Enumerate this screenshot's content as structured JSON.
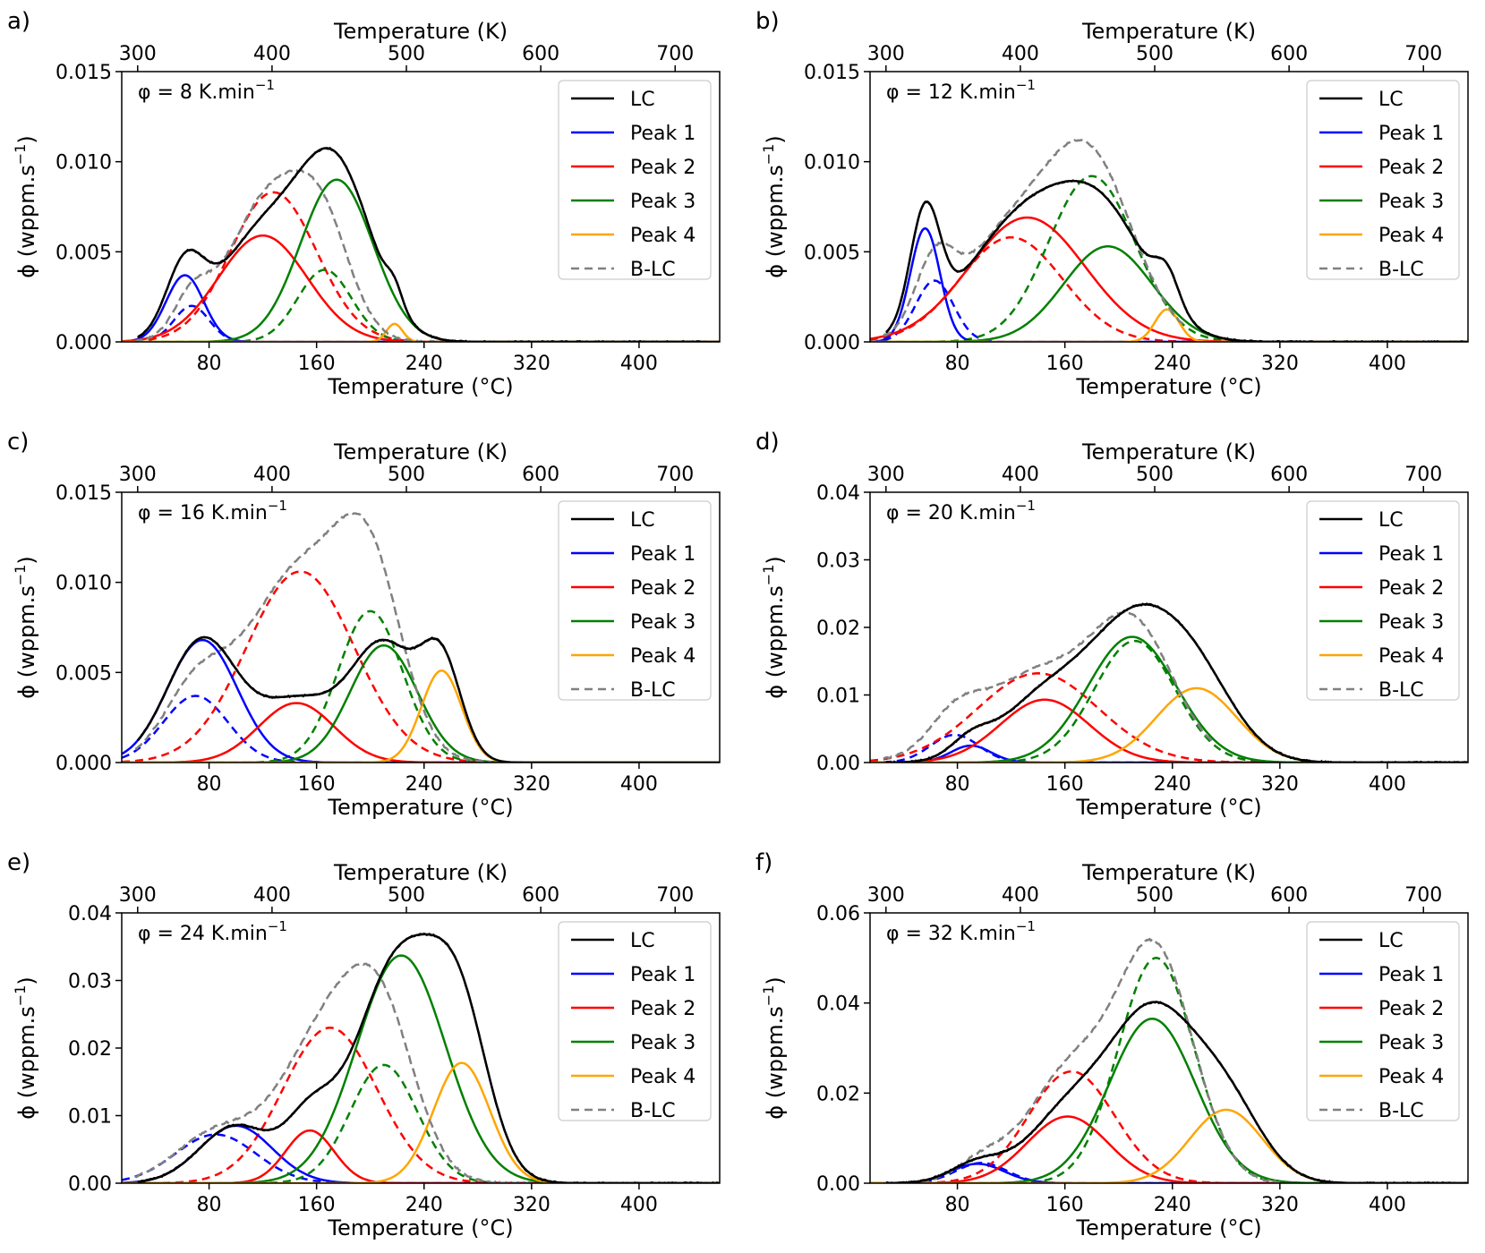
{
  "chart_data": {
    "type": "line",
    "figure_layout": "3x2 grid",
    "legend": {
      "placement": "top-right",
      "entries": [
        {
          "key": "lc",
          "label": "LC",
          "color": "#000000",
          "style": "solid"
        },
        {
          "key": "p1",
          "label": "Peak 1",
          "color": "#0000ff",
          "style": "solid"
        },
        {
          "key": "p2",
          "label": "Peak 2",
          "color": "#ff0000",
          "style": "solid"
        },
        {
          "key": "p3",
          "label": "Peak 3",
          "color": "#008000",
          "style": "solid"
        },
        {
          "key": "p4",
          "label": "Peak 4",
          "color": "#ffa500",
          "style": "solid"
        },
        {
          "key": "blc",
          "label": "B-LC",
          "color": "#808080",
          "style": "dashed"
        }
      ]
    },
    "xlabel": "Temperature (°C)",
    "x2label": "Temperature (K)",
    "ylabel_main": "ϕ (wppm.s",
    "ylabel_sup": "−1",
    "ylabel_close": ")",
    "xlim": [
      15,
      460
    ],
    "x_ticks": [
      80,
      160,
      240,
      320,
      400
    ],
    "x2_ticks": [
      300,
      400,
      500,
      600,
      700
    ],
    "panels": [
      {
        "letter": "a)",
        "rate_main": "φ = 8 K.min",
        "rate_sup": "−1",
        "ylim": [
          0,
          0.015
        ],
        "y_ticks": [
          "0.000",
          "0.005",
          "0.010",
          "0.015"
        ],
        "peaks": {
          "p1": {
            "center": 62,
            "amplitude": 0.0037,
            "width": 14
          },
          "p2": {
            "center": 120,
            "amplitude": 0.0059,
            "width": 33
          },
          "p3": {
            "center": 175,
            "amplitude": 0.009,
            "width": 27
          },
          "p4": {
            "center": 218,
            "amplitude": 0.001,
            "width": 6
          }
        },
        "baked_peaks": {
          "p1": {
            "center": 67,
            "amplitude": 0.002,
            "width": 13
          },
          "p2": {
            "center": 128,
            "amplitude": 0.0083,
            "width": 32
          },
          "p3": {
            "center": 166,
            "amplitude": 0.004,
            "width": 20
          }
        },
        "lc_cutoff": 450,
        "blc_cutoff": 250
      },
      {
        "letter": "b)",
        "rate_main": "φ = 12 K.min",
        "rate_sup": "−1",
        "ylim": [
          0,
          0.015
        ],
        "y_ticks": [
          "0.000",
          "0.005",
          "0.010",
          "0.015"
        ],
        "peaks": {
          "p1": {
            "center": 56,
            "amplitude": 0.0063,
            "width": 11
          },
          "p2": {
            "center": 132,
            "amplitude": 0.0069,
            "width": 43
          },
          "p3": {
            "center": 192,
            "amplitude": 0.0053,
            "width": 33
          },
          "p4": {
            "center": 236,
            "amplitude": 0.0018,
            "width": 9
          }
        },
        "baked_peaks": {
          "p1": {
            "center": 63,
            "amplitude": 0.0034,
            "width": 14
          },
          "p2": {
            "center": 120,
            "amplitude": 0.0058,
            "width": 38
          },
          "p3": {
            "center": 180,
            "amplitude": 0.0092,
            "width": 32
          }
        },
        "lc_cutoff": 460,
        "blc_cutoff": 250
      },
      {
        "letter": "c)",
        "rate_main": "φ = 16 K.min",
        "rate_sup": "−1",
        "ylim": [
          0,
          0.015
        ],
        "y_ticks": [
          "0.000",
          "0.005",
          "0.010",
          "0.015"
        ],
        "peaks": {
          "p1": {
            "center": 75,
            "amplitude": 0.0068,
            "width": 26
          },
          "p2": {
            "center": 145,
            "amplitude": 0.0033,
            "width": 28
          },
          "p3": {
            "center": 210,
            "amplitude": 0.0065,
            "width": 25
          },
          "p4": {
            "center": 253,
            "amplitude": 0.0051,
            "width": 15
          }
        },
        "baked_peaks": {
          "p1": {
            "center": 70,
            "amplitude": 0.0037,
            "width": 24
          },
          "p2": {
            "center": 148,
            "amplitude": 0.0106,
            "width": 40
          },
          "p3": {
            "center": 200,
            "amplitude": 0.0084,
            "width": 24
          }
        },
        "lc_cutoff": 282,
        "blc_cutoff": 290
      },
      {
        "letter": "d)",
        "rate_main": "φ = 20 K.min",
        "rate_sup": "−1",
        "ylim": [
          0,
          0.04
        ],
        "y_ticks": [
          "0.00",
          "0.01",
          "0.02",
          "0.03",
          "0.04"
        ],
        "peaks": {
          "p1": {
            "center": 90,
            "amplitude": 0.0025,
            "width": 15
          },
          "p2": {
            "center": 145,
            "amplitude": 0.0093,
            "width": 33
          },
          "p3": {
            "center": 210,
            "amplitude": 0.0186,
            "width": 33
          },
          "p4": {
            "center": 258,
            "amplitude": 0.011,
            "width": 30
          }
        },
        "baked_peaks": {
          "p1": {
            "center": 78,
            "amplitude": 0.0041,
            "width": 18
          },
          "p2": {
            "center": 140,
            "amplitude": 0.0132,
            "width": 45
          },
          "p3": {
            "center": 212,
            "amplitude": 0.018,
            "width": 30
          }
        },
        "lc_cutoff": 460,
        "blc_cutoff": 270
      },
      {
        "letter": "e)",
        "rate_main": "φ = 24 K.min",
        "rate_sup": "−1",
        "ylim": [
          0,
          0.04
        ],
        "y_ticks": [
          "0.00",
          "0.01",
          "0.02",
          "0.03",
          "0.04"
        ],
        "peaks": {
          "p1": {
            "center": 100,
            "amplitude": 0.0085,
            "width": 27
          },
          "p2": {
            "center": 155,
            "amplitude": 0.0078,
            "width": 18
          },
          "p3": {
            "center": 223,
            "amplitude": 0.0337,
            "width": 33
          },
          "p4": {
            "center": 268,
            "amplitude": 0.0178,
            "width": 21
          }
        },
        "baked_peaks": {
          "p1": {
            "center": 85,
            "amplitude": 0.0072,
            "width": 30
          },
          "p2": {
            "center": 170,
            "amplitude": 0.023,
            "width": 35
          },
          "p3": {
            "center": 210,
            "amplitude": 0.0175,
            "width": 25
          }
        },
        "lc_cutoff": 460,
        "blc_cutoff": 320
      },
      {
        "letter": "f)",
        "rate_main": "φ = 32 K.min",
        "rate_sup": "−1",
        "ylim": [
          0,
          0.06
        ],
        "y_ticks": [
          "0.00",
          "0.02",
          "0.04",
          "0.06"
        ],
        "peaks": {
          "p1": {
            "center": 95,
            "amplitude": 0.0043,
            "width": 20
          },
          "p2": {
            "center": 162,
            "amplitude": 0.0148,
            "width": 30
          },
          "p3": {
            "center": 225,
            "amplitude": 0.0365,
            "width": 32
          },
          "p4": {
            "center": 280,
            "amplitude": 0.0163,
            "width": 27
          }
        },
        "baked_peaks": {
          "p1": {
            "center": 98,
            "amplitude": 0.0045,
            "width": 19
          },
          "p2": {
            "center": 165,
            "amplitude": 0.0248,
            "width": 32
          },
          "p3": {
            "center": 228,
            "amplitude": 0.05,
            "width": 28
          }
        },
        "lc_cutoff": 460,
        "blc_cutoff": 320
      }
    ]
  }
}
